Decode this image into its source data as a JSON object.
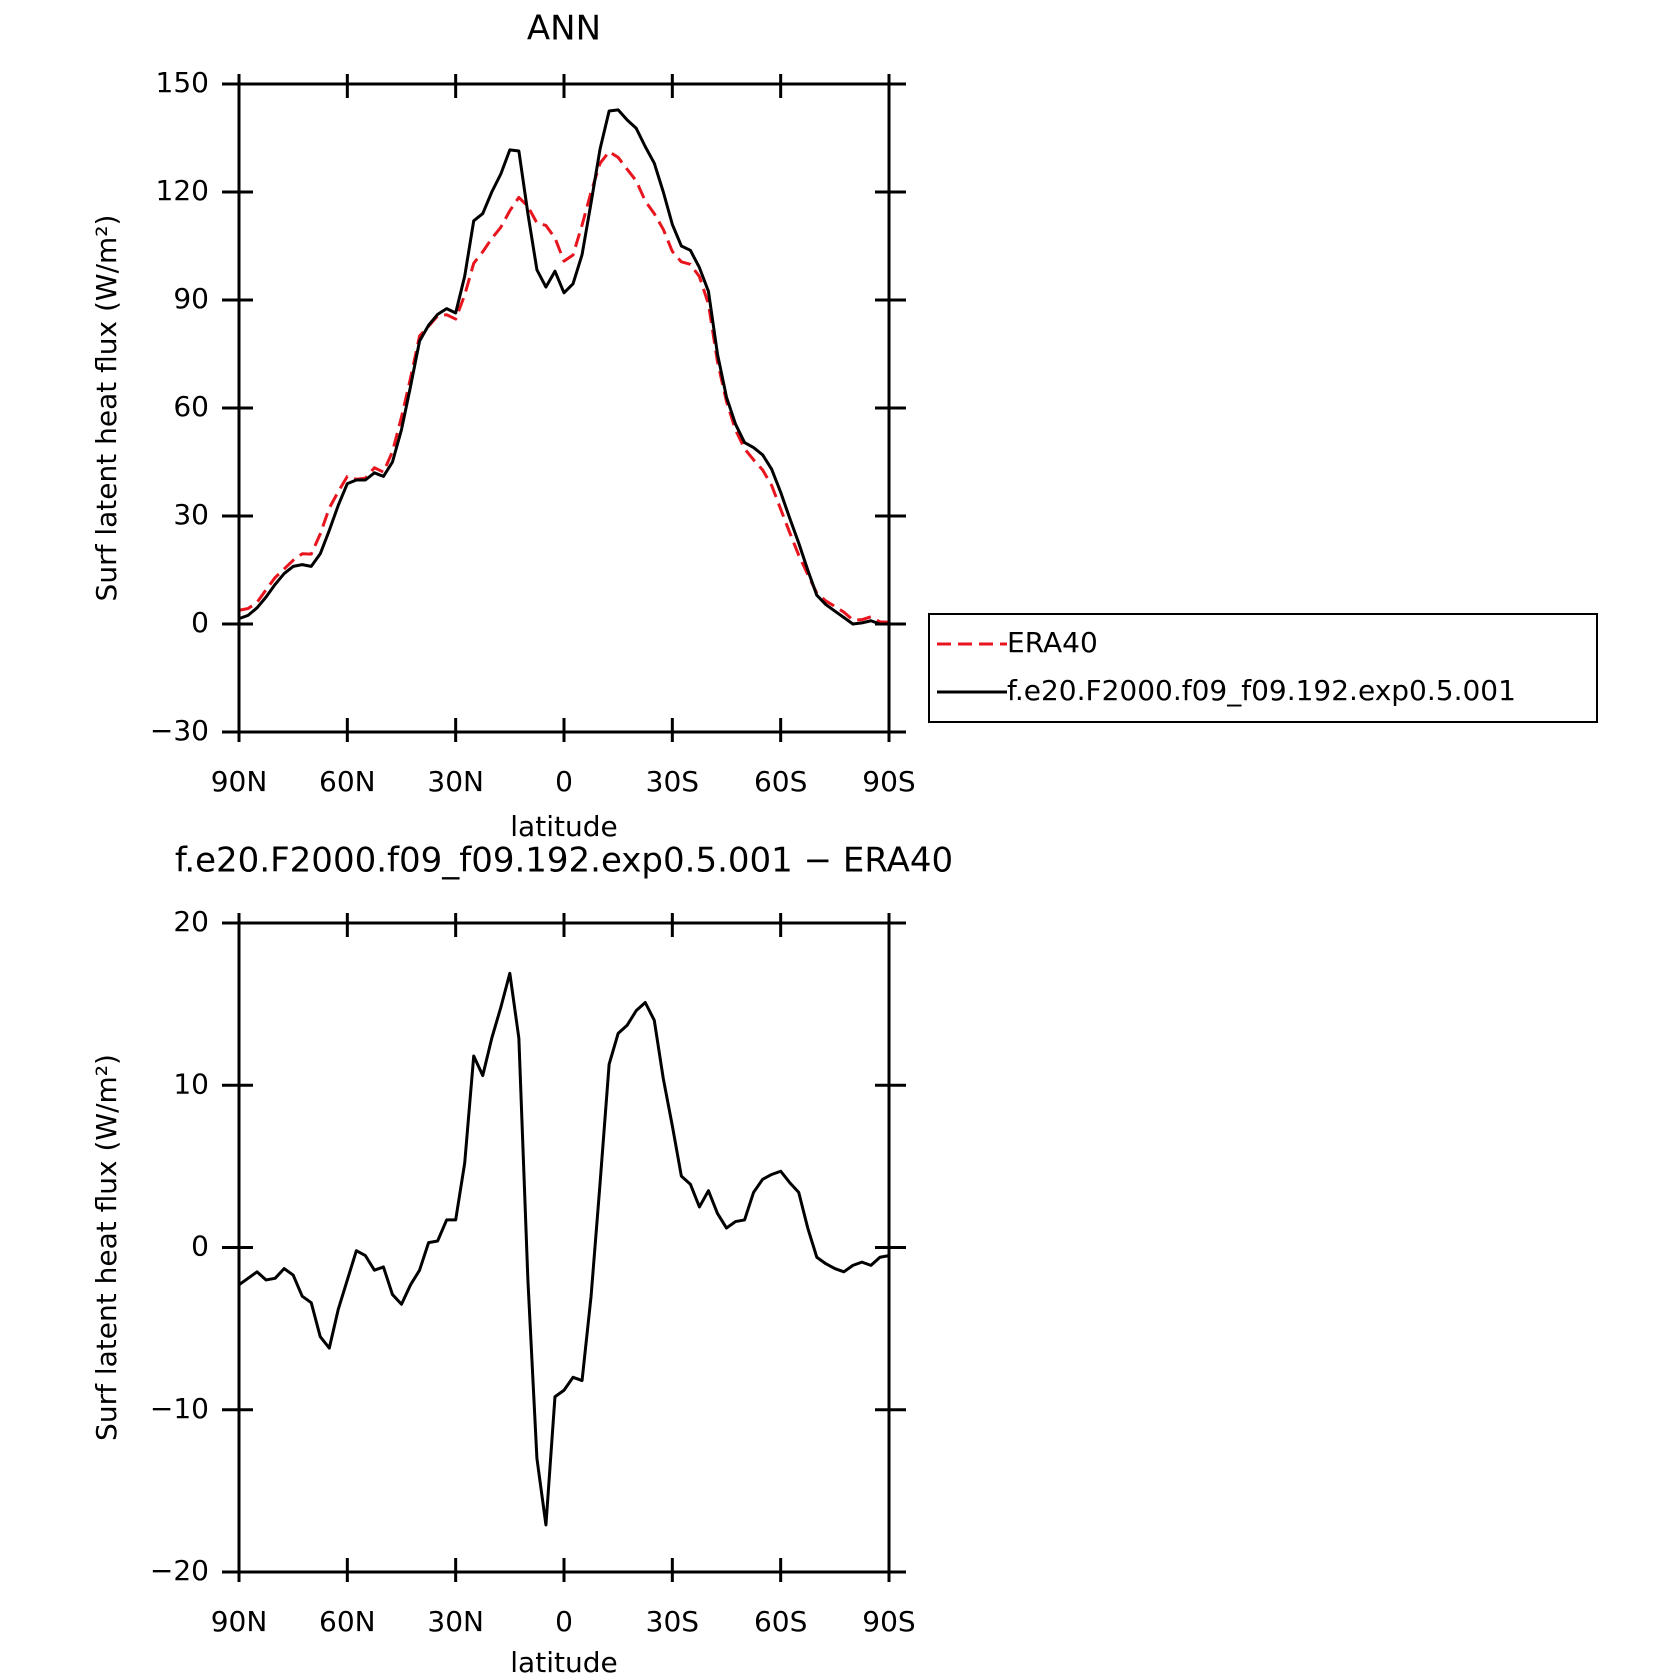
{
  "chart_data": [
    {
      "type": "line",
      "title": "ANN",
      "xlabel": "latitude",
      "ylabel": "Surf latent heat flux (W/m²)",
      "x": [
        90,
        87.5,
        85,
        82.5,
        80,
        77.5,
        75,
        72.5,
        70,
        67.5,
        65,
        62.5,
        60,
        57.5,
        55,
        52.5,
        50,
        47.5,
        45,
        42.5,
        40,
        37.5,
        35,
        32.5,
        30,
        27.5,
        25,
        22.5,
        20,
        17.5,
        15,
        12.5,
        10,
        7.5,
        5,
        2.5,
        0,
        -2.5,
        -5,
        -7.5,
        -10,
        -12.5,
        -15,
        -17.5,
        -20,
        -22.5,
        -25,
        -27.5,
        -30,
        -32.5,
        -35,
        -37.5,
        -40,
        -42.5,
        -45,
        -47.5,
        -50,
        -52.5,
        -55,
        -57.5,
        -60,
        -62.5,
        -65,
        -67.5,
        -70,
        -72.5,
        -75,
        -77.5,
        -80,
        -82.5,
        -85,
        -87.5,
        -90
      ],
      "xlim": [
        90,
        -90
      ],
      "xticks": [
        {
          "value": 90,
          "label": "90N"
        },
        {
          "value": 60,
          "label": "60N"
        },
        {
          "value": 30,
          "label": "30N"
        },
        0,
        {
          "value": -30,
          "label": "30S"
        },
        {
          "value": -60,
          "label": "60S"
        },
        {
          "value": -90,
          "label": "90S"
        }
      ],
      "ylim": [
        -30,
        150
      ],
      "yticks": [
        {
          "value": -30,
          "label": "−30"
        },
        0,
        30,
        60,
        90,
        120,
        150
      ],
      "legend": "right",
      "series": [
        {
          "name": "ERA40",
          "color": "#e8141e",
          "linestyle": "dashed",
          "values": [
            3.8,
            4.3,
            6.0,
            9.5,
            12.9,
            15.3,
            17.7,
            19.5,
            19.4,
            25,
            32.2,
            36.8,
            41,
            40.2,
            40.5,
            43.4,
            42.2,
            47.9,
            57.5,
            68.3,
            80,
            82.7,
            85.6,
            85.9,
            84.7,
            91.4,
            100.2,
            103.4,
            107.1,
            110.2,
            114.8,
            118.5,
            116,
            111.4,
            110.7,
            107.2,
            100.8,
            102.5,
            110.8,
            120,
            128,
            131.2,
            129.6,
            126.3,
            123.1,
            117.5,
            114,
            109.6,
            103.5,
            100.6,
            99.9,
            96.5,
            88.9,
            72.9,
            61.8,
            53.9,
            48.7,
            45.6,
            42.8,
            38.5,
            31.9,
            25.4,
            19.1,
            13.8,
            8.6,
            6.4,
            4.9,
            3.3,
            1.1,
            1.2,
            2.0,
            0.6,
            0.5
          ]
        },
        {
          "name": "f.e20.F2000.f09_f09.192.exp0.5.001",
          "color": "#000000",
          "linestyle": "solid",
          "values": [
            1.5,
            2.4,
            4.5,
            7.5,
            11,
            14,
            16,
            16.5,
            16,
            19.5,
            26,
            33,
            39,
            40,
            40,
            42,
            41,
            45,
            54,
            66,
            78.6,
            83,
            86,
            87.6,
            86.4,
            96.6,
            112,
            114,
            120,
            125,
            131.7,
            131.4,
            114,
            98.4,
            93.6,
            98,
            92,
            94.5,
            102.6,
            117,
            132,
            142.5,
            142.8,
            140,
            137.7,
            132.6,
            128,
            120,
            111,
            105,
            103.8,
            99,
            92.4,
            75,
            63,
            55.5,
            50.4,
            49,
            47,
            43,
            36.6,
            29.4,
            22.5,
            15,
            8,
            5.4,
            3.6,
            1.8,
            0,
            0.3,
            0.9,
            0,
            0
          ]
        }
      ]
    },
    {
      "type": "line",
      "title": "f.e20.F2000.f09_f09.192.exp0.5.001 − ERA40",
      "xlabel": "latitude",
      "ylabel": "Surf latent heat flux (W/m²)",
      "x": [
        90,
        87.5,
        85,
        82.5,
        80,
        77.5,
        75,
        72.5,
        70,
        67.5,
        65,
        62.5,
        60,
        57.5,
        55,
        52.5,
        50,
        47.5,
        45,
        42.5,
        40,
        37.5,
        35,
        32.5,
        30,
        27.5,
        25,
        22.5,
        20,
        17.5,
        15,
        12.5,
        10,
        7.5,
        5,
        2.5,
        0,
        -2.5,
        -5,
        -7.5,
        -10,
        -12.5,
        -15,
        -17.5,
        -20,
        -22.5,
        -25,
        -27.5,
        -30,
        -32.5,
        -35,
        -37.5,
        -40,
        -42.5,
        -45,
        -47.5,
        -50,
        -52.5,
        -55,
        -57.5,
        -60,
        -62.5,
        -65,
        -67.5,
        -70,
        -72.5,
        -75,
        -77.5,
        -80,
        -82.5,
        -85,
        -87.5,
        -90
      ],
      "xlim": [
        90,
        -90
      ],
      "xticks": [
        {
          "value": 90,
          "label": "90N"
        },
        {
          "value": 60,
          "label": "60N"
        },
        {
          "value": 30,
          "label": "30N"
        },
        0,
        {
          "value": -30,
          "label": "30S"
        },
        {
          "value": -60,
          "label": "60S"
        },
        {
          "value": -90,
          "label": "90S"
        }
      ],
      "ylim": [
        -20,
        20
      ],
      "yticks": [
        {
          "value": -20,
          "label": "−20"
        },
        {
          "value": -10,
          "label": "−10"
        },
        0,
        10,
        20
      ],
      "series": [
        {
          "color": "#000000",
          "linestyle": "solid",
          "values": [
            -2.3,
            -1.9,
            -1.5,
            -2.0,
            -1.9,
            -1.3,
            -1.7,
            -3.0,
            -3.4,
            -5.5,
            -6.2,
            -3.8,
            -2.0,
            -0.2,
            -0.5,
            -1.4,
            -1.2,
            -2.9,
            -3.5,
            -2.3,
            -1.4,
            0.3,
            0.4,
            1.7,
            1.7,
            5.2,
            11.8,
            10.6,
            12.9,
            14.8,
            16.9,
            12.9,
            -2.0,
            -13.0,
            -17.1,
            -9.2,
            -8.8,
            -8.0,
            -8.2,
            -3.0,
            4.0,
            11.3,
            13.2,
            13.7,
            14.6,
            15.1,
            14.0,
            10.4,
            7.5,
            4.4,
            3.9,
            2.5,
            3.5,
            2.1,
            1.2,
            1.6,
            1.7,
            3.4,
            4.2,
            4.5,
            4.7,
            4.0,
            3.4,
            1.2,
            -0.6,
            -1.0,
            -1.3,
            -1.5,
            -1.1,
            -0.9,
            -1.1,
            -0.6,
            -0.5
          ]
        }
      ]
    }
  ]
}
